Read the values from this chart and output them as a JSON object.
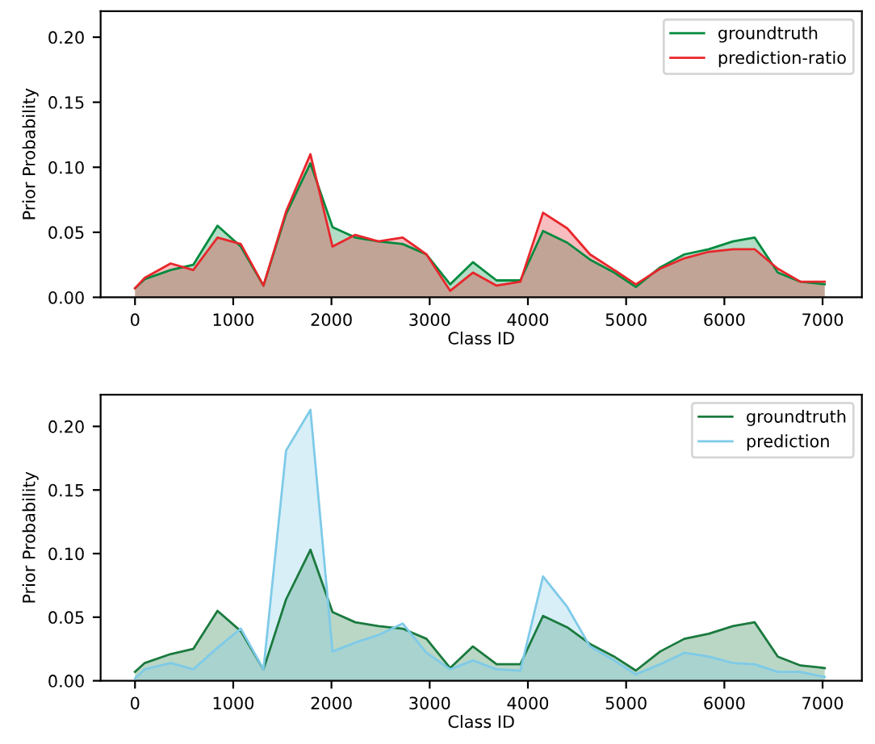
{
  "chart_data": [
    {
      "type": "area",
      "xlabel": "Class ID",
      "ylabel": "Prior Probability",
      "legend": "top right",
      "grid": false,
      "x": [
        0,
        100,
        363,
        593,
        840,
        1077,
        1308,
        1538,
        1786,
        2011,
        2242,
        2478,
        2725,
        2967,
        3209,
        3440,
        3681,
        3923,
        4154,
        4401,
        4632,
        4879,
        5099,
        5346,
        5593,
        5841,
        6088,
        6308,
        6544,
        6775,
        7022
      ],
      "xlim": [
        -350,
        7400
      ],
      "ylim": [
        0,
        0.22
      ],
      "xticks": [
        0,
        1000,
        2000,
        3000,
        4000,
        5000,
        6000,
        7000
      ],
      "yticks": [
        {
          "value": 0,
          "label": "0.00"
        },
        {
          "value": 0.05,
          "label": "0.05"
        },
        {
          "value": 0.1,
          "label": "0.10"
        },
        {
          "value": 0.15,
          "label": "0.15"
        },
        {
          "value": 0.2,
          "label": "0.20"
        }
      ],
      "series": [
        {
          "name": "groundtruth",
          "color": "#008a3e",
          "values": [
            0.007,
            0.014,
            0.021,
            0.025,
            0.055,
            0.039,
            0.009,
            0.064,
            0.103,
            0.054,
            0.046,
            0.043,
            0.041,
            0.033,
            0.01,
            0.027,
            0.013,
            0.013,
            0.051,
            0.042,
            0.029,
            0.019,
            0.008,
            0.023,
            0.033,
            0.037,
            0.043,
            0.046,
            0.019,
            0.012,
            0.01
          ]
        },
        {
          "name": "prediction-ratio",
          "color": "#e8262b",
          "values": [
            0.007,
            0.015,
            0.026,
            0.021,
            0.046,
            0.041,
            0.009,
            0.066,
            0.11,
            0.039,
            0.048,
            0.043,
            0.046,
            0.033,
            0.005,
            0.019,
            0.009,
            0.012,
            0.065,
            0.053,
            0.033,
            0.021,
            0.01,
            0.022,
            0.03,
            0.035,
            0.037,
            0.037,
            0.022,
            0.012,
            0.012
          ]
        }
      ]
    },
    {
      "type": "area",
      "xlabel": "Class ID",
      "ylabel": "Prior Probability",
      "legend": "top right",
      "grid": false,
      "x": [
        0,
        100,
        363,
        593,
        840,
        1077,
        1308,
        1538,
        1786,
        2011,
        2242,
        2478,
        2725,
        2967,
        3209,
        3440,
        3681,
        3923,
        4154,
        4401,
        4632,
        4879,
        5099,
        5346,
        5593,
        5841,
        6088,
        6308,
        6544,
        6775,
        7022
      ],
      "xlim": [
        -350,
        7400
      ],
      "ylim": [
        0,
        0.225
      ],
      "xticks": [
        0,
        1000,
        2000,
        3000,
        4000,
        5000,
        6000,
        7000
      ],
      "yticks": [
        {
          "value": 0,
          "label": "0.00"
        },
        {
          "value": 0.05,
          "label": "0.05"
        },
        {
          "value": 0.1,
          "label": "0.10"
        },
        {
          "value": 0.15,
          "label": "0.15"
        },
        {
          "value": 0.2,
          "label": "0.20"
        }
      ],
      "series": [
        {
          "name": "groundtruth",
          "color": "#1a7a3e",
          "values": [
            0.007,
            0.014,
            0.021,
            0.025,
            0.055,
            0.039,
            0.009,
            0.064,
            0.103,
            0.054,
            0.046,
            0.043,
            0.041,
            0.033,
            0.01,
            0.027,
            0.013,
            0.013,
            0.051,
            0.042,
            0.029,
            0.019,
            0.008,
            0.023,
            0.033,
            0.037,
            0.043,
            0.046,
            0.019,
            0.012,
            0.01
          ]
        },
        {
          "name": "prediction",
          "color": "#7ecae8",
          "values": [
            0.002,
            0.009,
            0.014,
            0.009,
            0.026,
            0.041,
            0.009,
            0.181,
            0.213,
            0.023,
            0.03,
            0.036,
            0.045,
            0.022,
            0.009,
            0.016,
            0.009,
            0.008,
            0.082,
            0.058,
            0.027,
            0.016,
            0.005,
            0.013,
            0.022,
            0.019,
            0.014,
            0.013,
            0.007,
            0.007,
            0.003
          ]
        }
      ]
    }
  ]
}
